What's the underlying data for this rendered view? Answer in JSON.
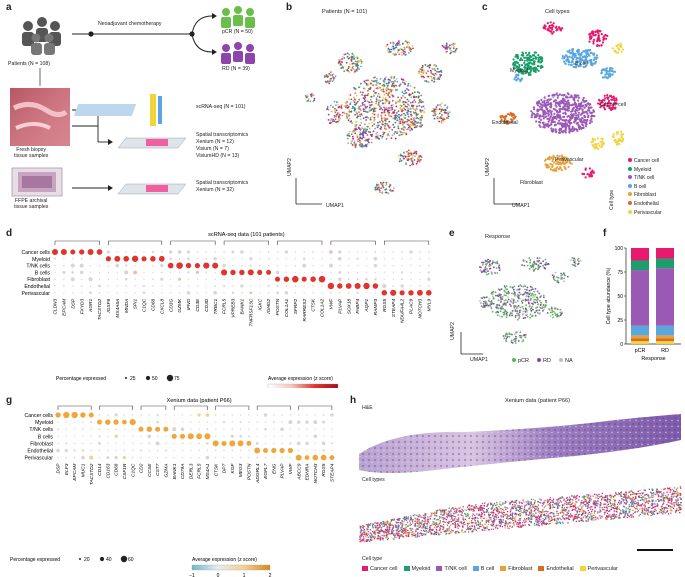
{
  "panel_labels": {
    "a": "a",
    "b": "b",
    "c": "c",
    "d": "d",
    "e": "e",
    "f": "f",
    "g": "g",
    "h": "h"
  },
  "panel_a": {
    "patients": "Patients (N = 108)",
    "chemo": "Neoadjuvant chemotherapy",
    "pcr": "pCR (N = 50)",
    "rd": "RD (N = 39)",
    "fresh": "Fresh biopsy\ntissue samples",
    "scrna": "scRNA-seq (N = 101)",
    "spatial_title": "Spatial transcriptomics",
    "xenium": "Xenium (N = 12)",
    "visium": "Visium (N = 7)",
    "visiumhd": "VisiumHD (N = 13)",
    "ffpe": "FFPE archival\ntissue samples",
    "spatial2_title": "Spatial transcriptomics",
    "xenium2": "Xenium (N = 32)"
  },
  "panel_b": {
    "title": "Patients (N = 101)",
    "umap1": "UMAP1",
    "umap2": "UMAP2"
  },
  "panel_c": {
    "title": "Cell types",
    "umap1": "UMAP1",
    "umap2": "UMAP2",
    "labels": {
      "myeloid": "Myeloid",
      "bcell": "B cell",
      "tnk": "T/NK cell",
      "cancer": "Cancer cell",
      "endo": "Endothelial",
      "peri": "Perivascular",
      "fib": "Fibroblast"
    },
    "legend_title": "Cell type",
    "legend": [
      {
        "name": "Cancer cell",
        "color": "#e6196e"
      },
      {
        "name": "Myeloid",
        "color": "#1b9e6b"
      },
      {
        "name": "T/NK cell",
        "color": "#9b59b6"
      },
      {
        "name": "B cell",
        "color": "#5aa6de"
      },
      {
        "name": "Fibroblast",
        "color": "#e5a13a"
      },
      {
        "name": "Endothelial",
        "color": "#d96b23"
      },
      {
        "name": "Perivascular",
        "color": "#f2d43b"
      }
    ]
  },
  "panel_d": {
    "header": "scRNA-seq data (101 patients)",
    "rows": [
      "Cancer cells",
      "Myeloid",
      "T/NK cells",
      "B cells",
      "Fibroblast",
      "Endothelial",
      "Perivascular"
    ],
    "genes": [
      "CLDN3",
      "EPCAM",
      "DSP",
      "FXYD3",
      "AGR1",
      "TACSTD2",
      "IGSF6",
      "MS4A6A",
      "MNDA",
      "SPI1",
      "C1QC",
      "CD68",
      "CXCL8",
      "CD3G",
      "GZMK",
      "IFNG",
      "CD3E",
      "CD3D",
      "TRBC1",
      "FCRL5",
      "VPREB3",
      "BANK1",
      "TNFRSF13C",
      "IGKC",
      "IGHG2",
      "POSTN",
      "COL1A1",
      "SFRP2",
      "RARRES2",
      "CTSK",
      "COL1A2",
      "VWF",
      "PLVAP",
      "SOX18",
      "FABP4",
      "AQP1",
      "RAMP3",
      "RGS5",
      "STEAP4",
      "NDUFA4L2",
      "PLAC9",
      "NOTCH3",
      "MYL9"
    ],
    "pct_title": "Percentage expressed",
    "pct_ticks": [
      "25",
      "50",
      "75"
    ],
    "avg_title": "Average expression (z score)",
    "avg_ticks": [
      "0",
      "1",
      "2"
    ]
  },
  "panel_e": {
    "title": "Response",
    "umap1": "UMAP1",
    "umap2": "UMAP2",
    "legend": [
      {
        "name": "pCR",
        "color": "#5cb85c"
      },
      {
        "name": "RD",
        "color": "#8e44ad"
      },
      {
        "name": "NA",
        "color": "#bdbdbd"
      }
    ]
  },
  "panel_f": {
    "ylabel": "Cell type abundance (%)",
    "xlabel": "Response",
    "yticks": [
      "0",
      "25",
      "50",
      "75",
      "100"
    ],
    "cats": [
      "pCR",
      "RD"
    ]
  },
  "chart_data": {
    "type": "bar",
    "stacked": true,
    "categories": [
      "pCR",
      "RD"
    ],
    "ylabel": "Cell type abundance (%)",
    "xlabel": "Response",
    "ylim": [
      0,
      100
    ],
    "series": [
      {
        "name": "Perivascular",
        "color": "#f2d43b",
        "values": [
          3,
          3
        ]
      },
      {
        "name": "Endothelial",
        "color": "#d96b23",
        "values": [
          3,
          3
        ]
      },
      {
        "name": "Fibroblast",
        "color": "#e5a13a",
        "values": [
          3,
          3
        ]
      },
      {
        "name": "B cell",
        "color": "#5aa6de",
        "values": [
          10,
          10
        ]
      },
      {
        "name": "T/NK cell",
        "color": "#9b59b6",
        "values": [
          58,
          60
        ]
      },
      {
        "name": "Myeloid",
        "color": "#1b9e6b",
        "values": [
          10,
          10
        ]
      },
      {
        "name": "Cancer cell",
        "color": "#e6196e",
        "values": [
          13,
          11
        ]
      }
    ]
  },
  "panel_g": {
    "header": "Xenium data (patient P66)",
    "rows": [
      "Cancer cells",
      "Myeloid",
      "T/NK cells",
      "B cells",
      "Fibroblast",
      "Endothelial",
      "Perivascular"
    ],
    "genes": [
      "DSP",
      "ELF3",
      "EPCAM",
      "MUC1",
      "TACSTD2",
      "CD14",
      "CD163",
      "CD68",
      "CSF1R",
      "C1QC",
      "CD2",
      "CCSE",
      "CST7",
      "GZMA",
      "BANK1",
      "CD79A",
      "DERL3",
      "FCRL5",
      "MS4A1",
      "CTSK",
      "DPT",
      "KGF",
      "MEG3",
      "POSTN",
      "ADGRL4",
      "EGFL7",
      "ENG",
      "PLVAP",
      "VWF",
      "ABCC9",
      "EDNRA",
      "NOTCH3",
      "RGS5",
      "STEAP4"
    ],
    "pct_title": "Percentage expressed",
    "pct_ticks": [
      "20",
      "40",
      "60"
    ],
    "avg_title": "Average expression (z score)",
    "avg_ticks": [
      "−1",
      "0",
      "1",
      "2"
    ]
  },
  "panel_h": {
    "title": "Xenium data (patient P66)",
    "he": "H&E",
    "celltypes": "Cell types",
    "legend_title": "Cell type",
    "legend": [
      {
        "name": "Cancer cell",
        "color": "#e6196e"
      },
      {
        "name": "Myeloid",
        "color": "#1b9e6b"
      },
      {
        "name": "T/NK cell",
        "color": "#9b59b6"
      },
      {
        "name": "B cell",
        "color": "#5aa6de"
      },
      {
        "name": "Fibroblast",
        "color": "#e5a13a"
      },
      {
        "name": "Endothelial",
        "color": "#d96b23"
      },
      {
        "name": "Perivascular",
        "color": "#f2d43b"
      }
    ]
  }
}
